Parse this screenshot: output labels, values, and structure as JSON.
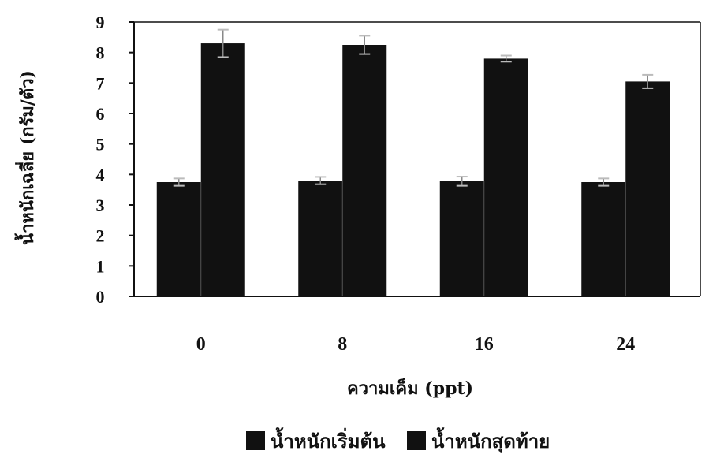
{
  "chart_data": {
    "type": "bar",
    "categories": [
      "0",
      "8",
      "16",
      "24"
    ],
    "series": [
      {
        "name": "น้ำหนักเริ่มต้น",
        "values": [
          3.75,
          3.8,
          3.78,
          3.75
        ],
        "errors": [
          0.12,
          0.12,
          0.15,
          0.12
        ],
        "color": "#111111"
      },
      {
        "name": "น้ำหนักสุดท้าย",
        "values": [
          8.3,
          8.25,
          7.8,
          7.05
        ],
        "errors": [
          0.45,
          0.3,
          0.1,
          0.22
        ],
        "color": "#111111"
      }
    ],
    "xlabel": "ความเค็ม (ppt)",
    "ylabel": "น้ำหนักเฉลี่ย (กรัม/ตัว)",
    "ylim": [
      0,
      9
    ],
    "yticks": [
      "0",
      "1",
      "2",
      "3",
      "4",
      "5",
      "6",
      "7",
      "8",
      "9"
    ],
    "grid": false,
    "legend_position": "bottom"
  }
}
